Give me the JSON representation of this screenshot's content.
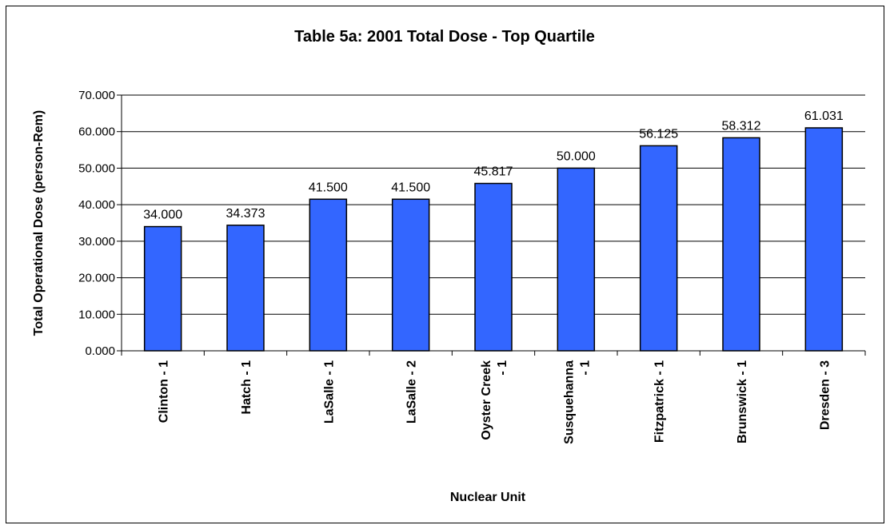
{
  "chart_data": {
    "type": "bar",
    "title": "Table 5a: 2001 Total Dose - Top Quartile",
    "xlabel": "Nuclear Unit",
    "ylabel": "Total Operational Dose (person-Rem)",
    "ylim": [
      0,
      70
    ],
    "yticks": [
      "0.000",
      "10.000",
      "20.000",
      "30.000",
      "40.000",
      "50.000",
      "60.000",
      "70.000"
    ],
    "grid": true,
    "legend": "none",
    "bar_color": "#3366FF",
    "categories": [
      [
        "Clinton - 1"
      ],
      [
        "Hatch - 1"
      ],
      [
        "LaSalle - 1"
      ],
      [
        "LaSalle - 2"
      ],
      [
        "Oyster Creek",
        "- 1"
      ],
      [
        "Susquehanna",
        "- 1"
      ],
      [
        "Fitzpatrick - 1"
      ],
      [
        "Brunswick - 1"
      ],
      [
        "Dresden - 3"
      ]
    ],
    "values": [
      34.0,
      34.373,
      41.5,
      41.5,
      45.817,
      50.0,
      56.125,
      58.312,
      61.031
    ],
    "data_labels": [
      "34.000",
      "34.373",
      "41.500",
      "41.500",
      "45.817",
      "50.000",
      "56.125",
      "58.312",
      "61.031"
    ]
  }
}
